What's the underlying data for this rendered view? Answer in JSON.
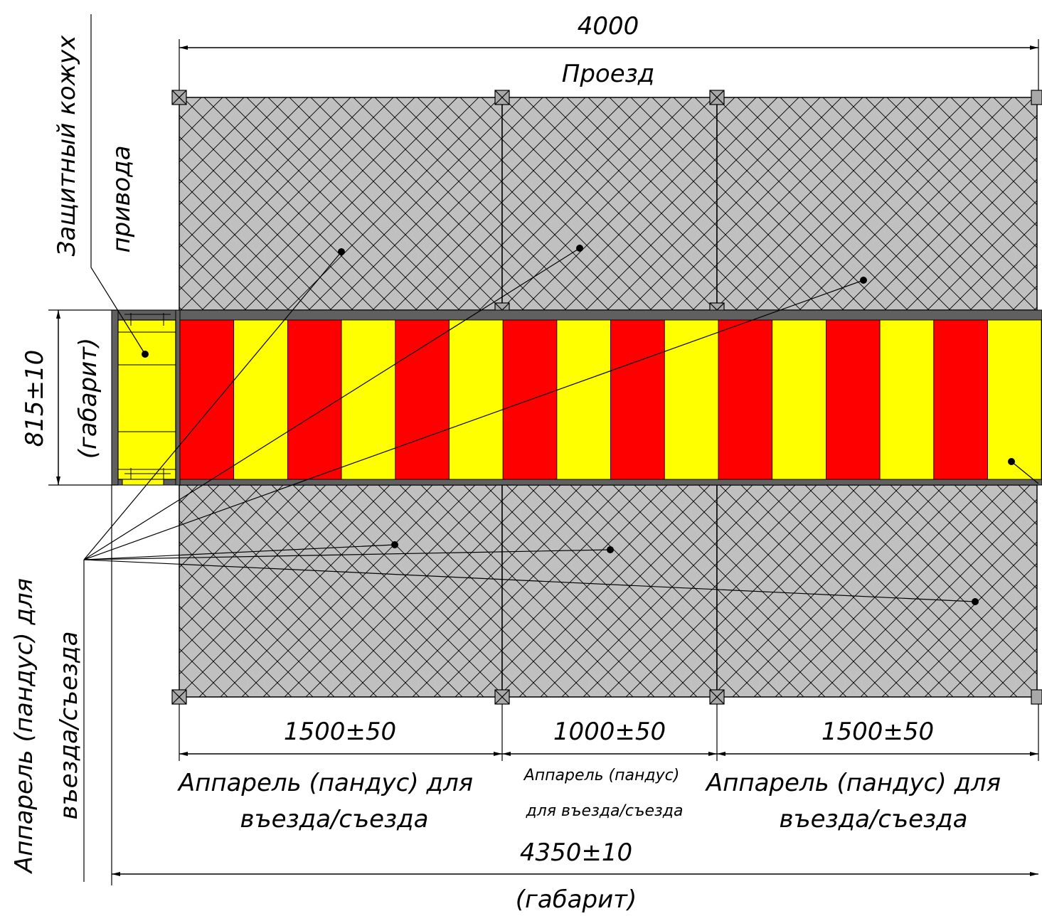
{
  "colors": {
    "ramp_fill": "#c0c0c0",
    "stripe_red": "#ff0000",
    "stripe_yellow": "#ffff00",
    "frame_dark": "#606060",
    "line": "#000000"
  },
  "dimensions": {
    "top_width": "4000",
    "depth": "815±10",
    "depth_note": "(габарит)",
    "left_ramp": "1500±50",
    "middle_ramp": "1000±50",
    "right_ramp": "1500±50",
    "overall": "4350±10",
    "overall_note": "(габарит)"
  },
  "labels": {
    "passage": "Проезд",
    "drive_cover_line1": "Защитный кожух",
    "drive_cover_line2": "привода",
    "ramp_left_line1": "Аппарель (пандус) для",
    "ramp_left_line2": "въезда/съезда",
    "ramp_middle_line1": "Аппарель (пандус)",
    "ramp_middle_line2": "для въезда/съезда",
    "ramp_right_line1": "Аппарель (пандус) для",
    "ramp_right_line2": "въезда/съезда",
    "ramp_side_line1": "Аппарель (пандус) для",
    "ramp_side_line2": "въезда/съезда"
  }
}
